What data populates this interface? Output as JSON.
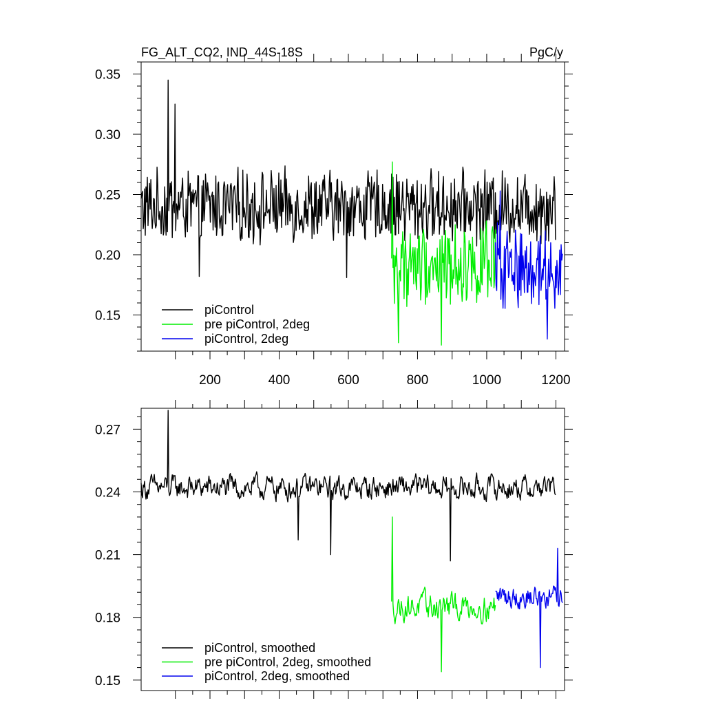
{
  "chart_data": [
    {
      "type": "line",
      "title": "FG_ALT_CO2, IND_44S-18S",
      "units": "PgC/y",
      "xlabel": "",
      "ylabel": "",
      "xlim": [
        1,
        1225
      ],
      "ylim": [
        0.12,
        0.36
      ],
      "x_ticks": [
        200,
        400,
        600,
        800,
        1000,
        1200
      ],
      "x_tick_labels": [
        "200",
        "400",
        "600",
        "800",
        "1000",
        "1200"
      ],
      "y_ticks": [
        0.15,
        0.2,
        0.25,
        0.3,
        0.35
      ],
      "y_tick_labels": [
        "0.15",
        "0.20",
        "0.25",
        "0.30",
        "0.35"
      ],
      "grid": false,
      "legend_position": "bottom-left",
      "series": [
        {
          "name": "piControl",
          "color": "#000000",
          "x_start": 1,
          "x_end": 1200,
          "mean": 0.24,
          "spread": 0.026,
          "peaks": [
            {
              "x": 80,
              "y": 0.345
            },
            {
              "x": 100,
              "y": 0.325
            },
            {
              "x": 170,
              "y": 0.182
            },
            {
              "x": 595,
              "y": 0.181
            }
          ]
        },
        {
          "name": "pre piControl, 2deg",
          "color": "#00ee00",
          "x_start": 725,
          "x_end": 1025,
          "mean": 0.192,
          "spread": 0.03,
          "peaks": [
            {
              "x": 727,
              "y": 0.277
            },
            {
              "x": 745,
              "y": 0.127
            },
            {
              "x": 870,
              "y": 0.125
            }
          ]
        },
        {
          "name": "piControl, 2deg",
          "color": "#0000ee",
          "x_start": 1025,
          "x_end": 1220,
          "mean": 0.19,
          "spread": 0.03,
          "peaks": [
            {
              "x": 1040,
              "y": 0.253
            },
            {
              "x": 1175,
              "y": 0.13
            }
          ]
        }
      ]
    },
    {
      "type": "line",
      "title": "",
      "xlabel": "",
      "ylabel": "",
      "xlim": [
        1,
        1225
      ],
      "ylim": [
        0.145,
        0.28
      ],
      "x_ticks": [
        200,
        400,
        600,
        800,
        1000,
        1200
      ],
      "y_ticks": [
        0.15,
        0.18,
        0.21,
        0.24,
        0.27
      ],
      "y_tick_labels": [
        "0.15",
        "0.18",
        "0.21",
        "0.24",
        "0.27"
      ],
      "grid": false,
      "legend_position": "bottom-left",
      "series": [
        {
          "name": "piControl, smoothed",
          "color": "#000000",
          "x_start": 1,
          "x_end": 1200,
          "mean": 0.242,
          "spread": 0.01,
          "peaks": [
            {
              "x": 80,
              "y": 0.279
            },
            {
              "x": 455,
              "y": 0.217
            },
            {
              "x": 550,
              "y": 0.21
            },
            {
              "x": 895,
              "y": 0.207
            }
          ]
        },
        {
          "name": "pre piControl, 2deg, smoothed",
          "color": "#00ee00",
          "x_start": 725,
          "x_end": 1025,
          "mean": 0.185,
          "spread": 0.011,
          "peaks": [
            {
              "x": 727,
              "y": 0.228
            },
            {
              "x": 870,
              "y": 0.154
            }
          ]
        },
        {
          "name": "piControl, 2deg, smoothed",
          "color": "#0000ee",
          "x_start": 1025,
          "x_end": 1220,
          "mean": 0.19,
          "spread": 0.01,
          "peaks": [
            {
              "x": 1155,
              "y": 0.156
            },
            {
              "x": 1205,
              "y": 0.213
            }
          ]
        }
      ]
    }
  ]
}
